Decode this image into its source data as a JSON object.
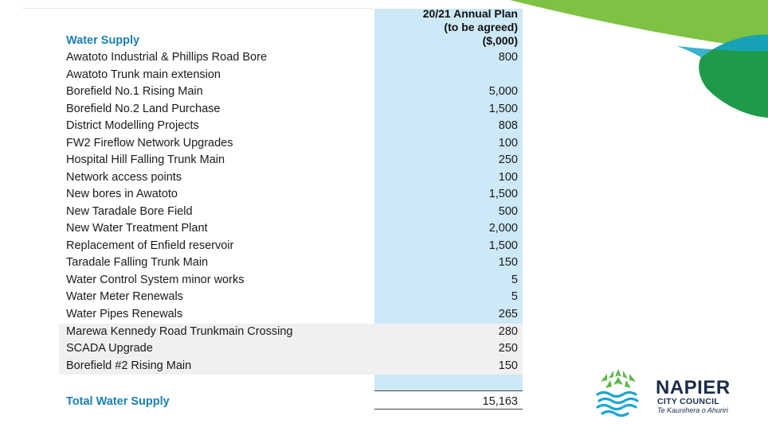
{
  "header": {
    "line1": "20/21 Annual Plan",
    "line2": "(to be agreed)",
    "line3": "($,000)"
  },
  "section_title": "Water Supply",
  "rows": [
    {
      "label": "Awatoto Industrial & Phillips Road Bore",
      "value": "800"
    },
    {
      "label": "Awatoto Trunk main extension",
      "value": ""
    },
    {
      "label": "Borefield No.1 Rising Main",
      "value": "5,000"
    },
    {
      "label": "Borefield No.2 Land Purchase",
      "value": "1,500"
    },
    {
      "label": "District Modelling Projects",
      "value": "808"
    },
    {
      "label": "FW2 Fireflow Network Upgrades",
      "value": "100"
    },
    {
      "label": "Hospital Hill Falling Trunk Main",
      "value": "250"
    },
    {
      "label": "Network access points",
      "value": "100"
    },
    {
      "label": "New bores in Awatoto",
      "value": "1,500"
    },
    {
      "label": "New Taradale Bore Field",
      "value": "500"
    },
    {
      "label": "New Water Treatment Plant",
      "value": "2,000"
    },
    {
      "label": "Replacement of Enfield reservoir",
      "value": "1,500"
    },
    {
      "label": "Taradale Falling Trunk Main",
      "value": "150"
    },
    {
      "label": "Water Control System minor works",
      "value": "5"
    },
    {
      "label": "Water Meter Renewals",
      "value": "5"
    },
    {
      "label": "Water Pipes Renewals",
      "value": "265"
    },
    {
      "label": "Marewa Kennedy Road Trunkmain Crossing",
      "value": "280"
    },
    {
      "label": "SCADA Upgrade",
      "value": "250"
    },
    {
      "label": "Borefield #2 Rising Main",
      "value": "150"
    }
  ],
  "total": {
    "label": "Total Water Supply",
    "value": "15,163"
  },
  "logo": {
    "name": "NAPIER",
    "sub": "CITY COUNCIL",
    "tagline": "Te Kaunihera o Ahuriri"
  },
  "colors": {
    "accent_blue": "#1b7fb5",
    "column_fill": "#cde8f7",
    "deco_light_green": "#7dc242",
    "deco_dark_green": "#1f9a48",
    "logo_navy": "#1c2d4a"
  }
}
